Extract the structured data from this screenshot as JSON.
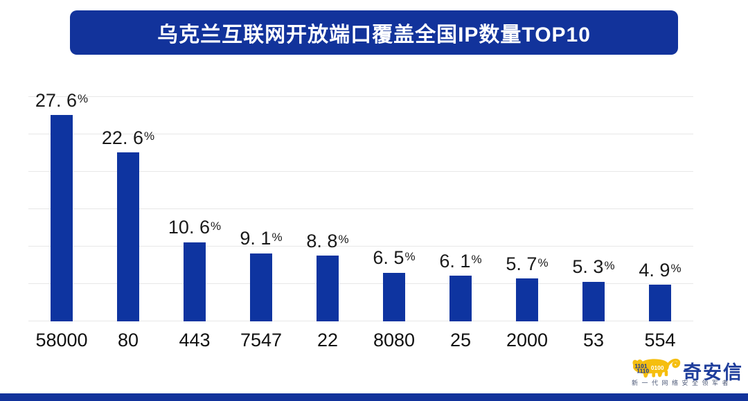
{
  "title": {
    "text": "乌克兰互联网开放端口覆盖全国IP数量TOP10"
  },
  "chart_data": {
    "type": "bar",
    "title": "乌克兰互联网开放端口覆盖全国IP数量TOP10",
    "categories": [
      "58000",
      "80",
      "443",
      "7547",
      "22",
      "8080",
      "25",
      "2000",
      "53",
      "554"
    ],
    "values": [
      27.6,
      22.6,
      10.6,
      9.1,
      8.8,
      6.5,
      6.1,
      5.7,
      5.3,
      4.9
    ],
    "value_labels": [
      "27. 6",
      "22. 6",
      "10. 6",
      "9. 1",
      "8. 8",
      "6. 5",
      "6. 1",
      "5. 7",
      "5. 3",
      "4. 9"
    ],
    "percent_suffix": "%",
    "xlabel": "",
    "ylabel": "",
    "ylim": [
      0,
      30
    ],
    "grid_step": 5,
    "grid": true,
    "legend": false,
    "bar_color": "#0E34A0"
  },
  "logo": {
    "brand": "奇安信",
    "tagline": "新一代网络安全领军者",
    "tiger_digits": [
      "1101",
      "1110",
      "0100"
    ],
    "colors": {
      "tiger_yellow": "#F5BE0F",
      "brand_blue": "#1E3D9B",
      "tagline_color": "#4E5A78",
      "digit_navy": "#12339B",
      "digit_white": "#FFFFFF"
    }
  },
  "colors": {
    "background": "#FFFFFF",
    "banner_bg": "#12339B",
    "banner_text": "#FFFFFF",
    "bar": "#0E34A0",
    "gridline": "#E7E7E7",
    "label_text": "#1A1A1A",
    "bottom_strip": "#12339B"
  }
}
